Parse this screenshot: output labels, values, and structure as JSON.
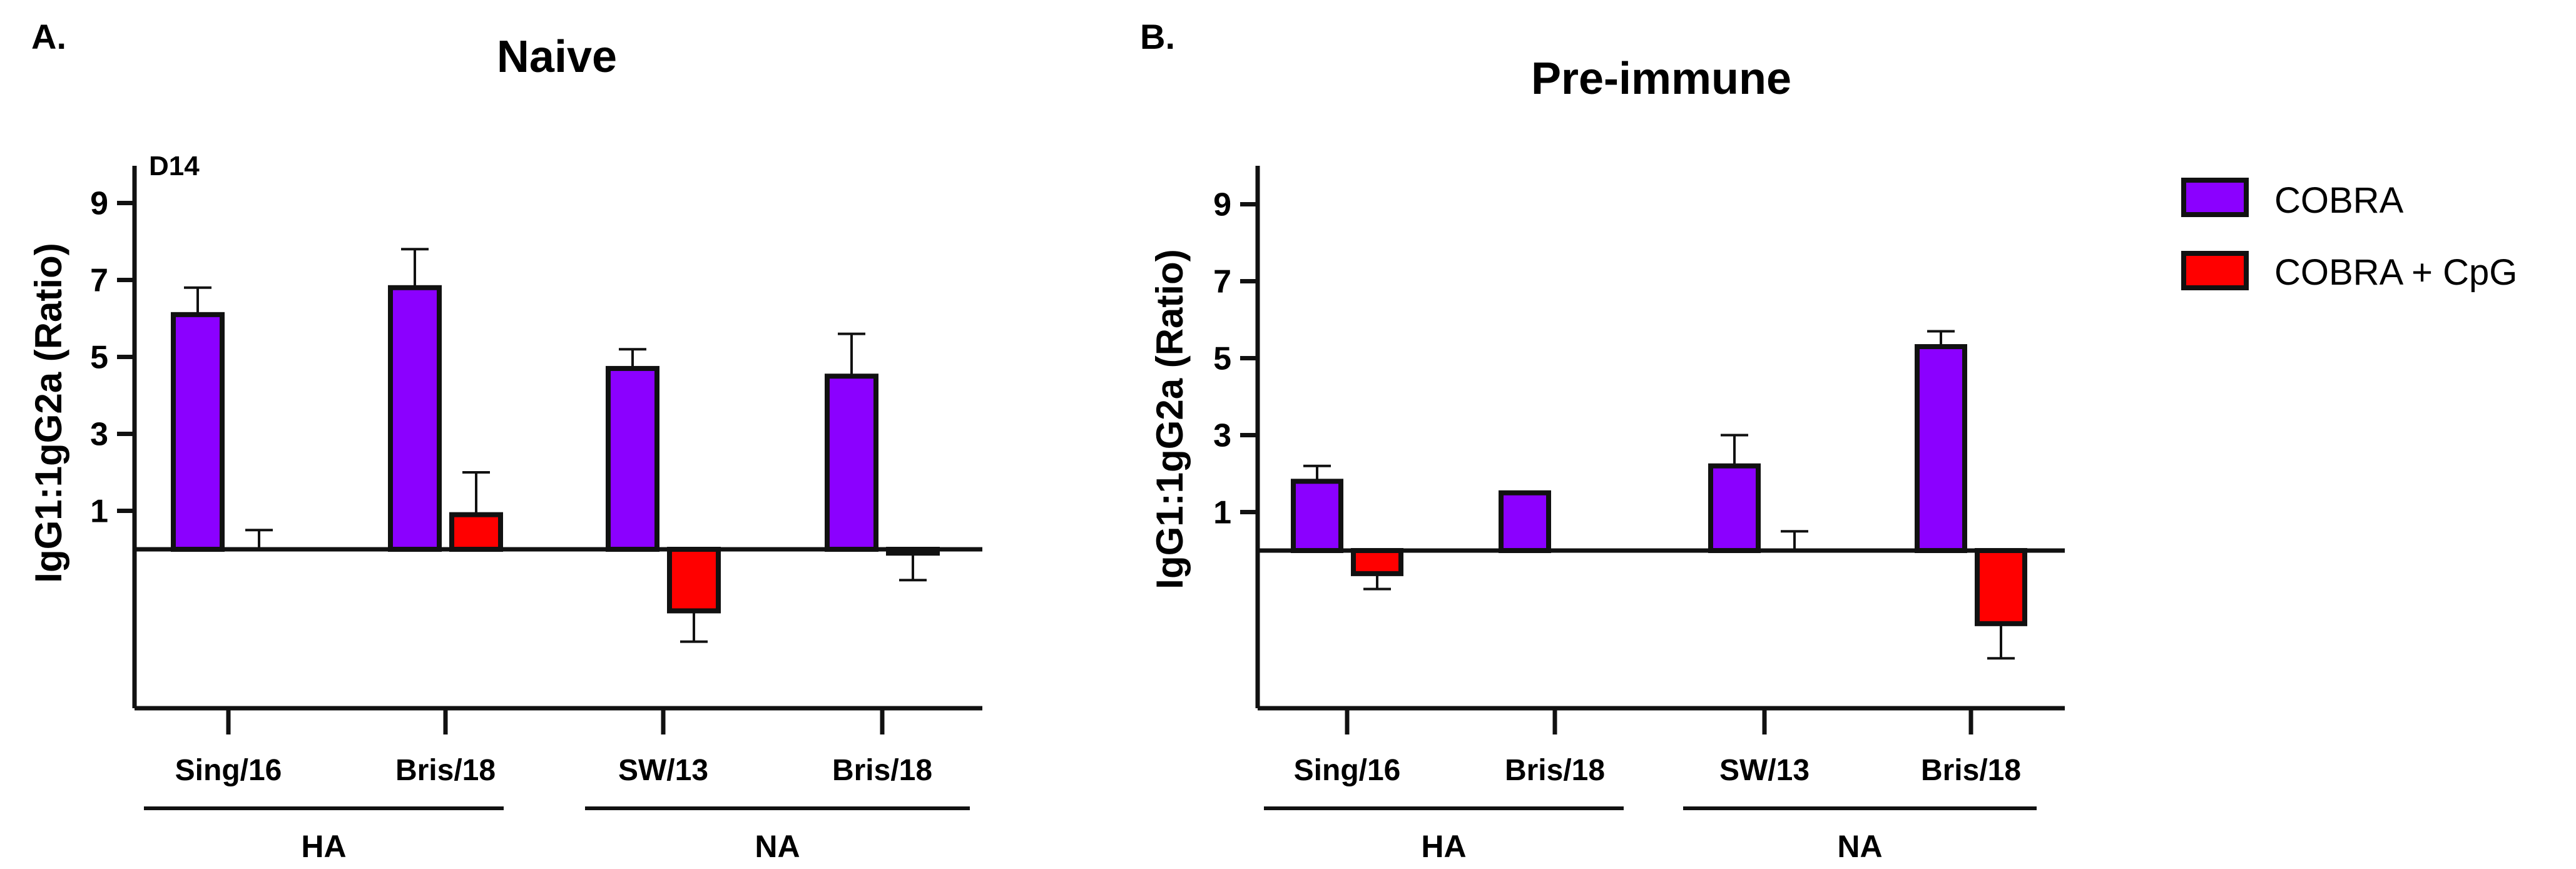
{
  "chart_data": [
    {
      "type": "bar",
      "panel_label": "A.",
      "title": "Naive",
      "annotation": "D14",
      "ylabel": "IgG1:1gG2a (Ratio)",
      "yticks": [
        "9",
        "7",
        "5",
        "3",
        "1"
      ],
      "tick_values": [
        9,
        7,
        5,
        3,
        1
      ],
      "ylim": [
        -4,
        10
      ],
      "baseline": 0,
      "categories": [
        "Sing/16",
        "Bris/18",
        "SW/13",
        "Bris/18"
      ],
      "groups": [
        {
          "label": "HA",
          "categories": [
            0,
            1
          ]
        },
        {
          "label": "NA",
          "categories": [
            2,
            3
          ]
        }
      ],
      "series": [
        {
          "name": "COBRA",
          "values": [
            6.1,
            6.8,
            4.7,
            4.5
          ],
          "errors": [
            0.7,
            1.0,
            0.5,
            1.1
          ]
        },
        {
          "name": "COBRA + CpG",
          "values": [
            0.0,
            0.9,
            -1.6,
            -0.1
          ],
          "errors": [
            0.5,
            1.1,
            0.8,
            0.7
          ]
        }
      ]
    },
    {
      "type": "bar",
      "panel_label": "B.",
      "title": "Pre-immune",
      "ylabel": "IgG1:1gG2a (Ratio)",
      "yticks": [
        "9",
        "7",
        "5",
        "3",
        "1"
      ],
      "tick_values": [
        9,
        7,
        5,
        3,
        1
      ],
      "ylim": [
        -4,
        10
      ],
      "baseline": 0,
      "categories": [
        "Sing/16",
        "Bris/18",
        "SW/13",
        "Bris/18"
      ],
      "groups": [
        {
          "label": "HA",
          "categories": [
            0,
            1
          ]
        },
        {
          "label": "NA",
          "categories": [
            2,
            3
          ]
        }
      ],
      "series": [
        {
          "name": "COBRA",
          "values": [
            1.8,
            1.5,
            2.2,
            5.3
          ],
          "errors": [
            0.4,
            0.0,
            0.8,
            0.4
          ]
        },
        {
          "name": "COBRA + CpG",
          "values": [
            -0.6,
            0.0,
            0.0,
            -1.9
          ],
          "errors": [
            0.4,
            0.0,
            0.5,
            0.9
          ]
        }
      ]
    }
  ],
  "legend": {
    "items": [
      {
        "label": "COBRA",
        "color": "#8B00FF"
      },
      {
        "label": "COBRA + CpG",
        "color": "#FF0000"
      }
    ]
  },
  "colors": {
    "cobra": "#8B00FF",
    "cobra_cpg": "#FF0000",
    "outline": "#111111"
  }
}
